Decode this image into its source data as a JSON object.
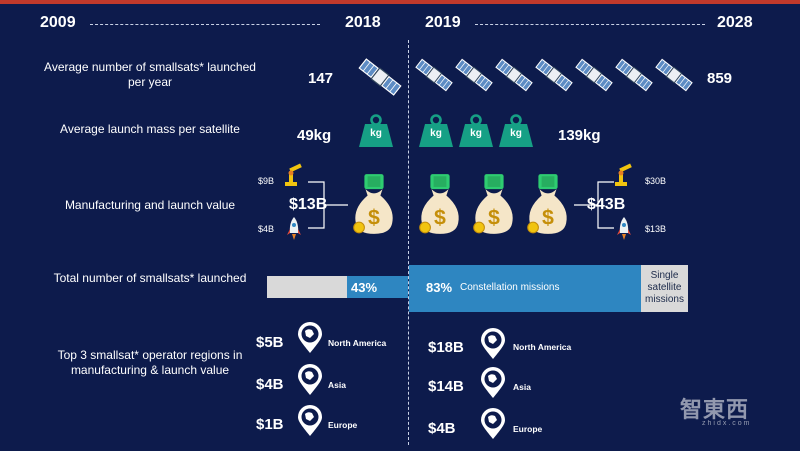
{
  "header": {
    "y2009": "2009",
    "y2018": "2018",
    "y2019": "2019",
    "y2028": "2028"
  },
  "rows": {
    "launched": {
      "label": "Average number of smallsats* launched per year",
      "left": "147",
      "right": "859"
    },
    "mass": {
      "label": "Average launch mass per satellite",
      "left": "49kg",
      "right": "139kg",
      "kg": "kg"
    },
    "value": {
      "label": "Manufacturing and launch value",
      "left_total": "$13B",
      "left_mfg": "$9B",
      "left_launch": "$4B",
      "right_total": "$43B",
      "right_mfg": "$30B",
      "right_launch": "$13B"
    },
    "total": {
      "label": "Total number of smallsats* launched",
      "left_pct": "43%",
      "left_fraction": 0.43,
      "right_pct": "83%",
      "right_fraction": 0.83,
      "constellation": "Constellation missions",
      "single": "Single satellite missions"
    },
    "regions": {
      "label": "Top 3 smallsat* operator regions in manufacturing & launch value",
      "left": [
        {
          "value": "$5B",
          "name": "North America"
        },
        {
          "value": "$4B",
          "name": "Asia"
        },
        {
          "value": "$1B",
          "name": "Europe"
        }
      ],
      "right": [
        {
          "value": "$18B",
          "name": "North America"
        },
        {
          "value": "$14B",
          "name": "Asia"
        },
        {
          "value": "$4B",
          "name": "Europe"
        }
      ]
    }
  },
  "watermark": {
    "main": "智東西",
    "sub": "zhidx.com"
  },
  "colors": {
    "background": "#0d1b4c",
    "accent": "#2e86c1",
    "teal": "#16a085",
    "gold": "#f1c40f",
    "grey": "#d9d9d9"
  }
}
